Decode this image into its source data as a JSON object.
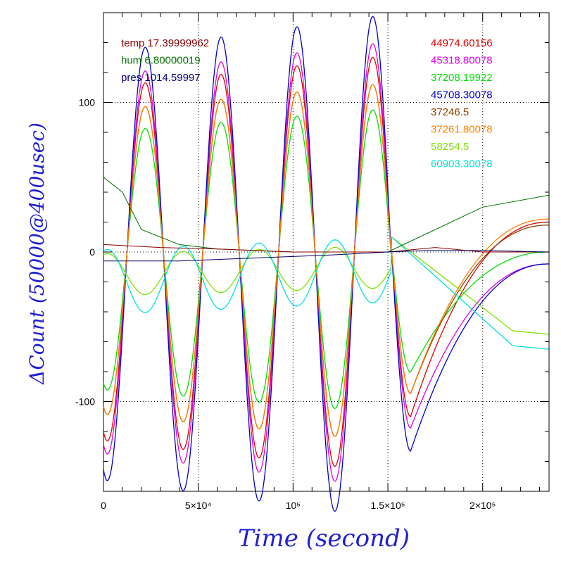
{
  "chart_data": {
    "type": "line",
    "xlabel": "Time (second)",
    "ylabel": "ΔCount (50000@400usec)",
    "xlim": [
      0,
      235000
    ],
    "ylim": [
      -160,
      160
    ],
    "grid": true,
    "grid_style": "dotted",
    "axis_label_color": "#2020d0",
    "x_ticks": [
      {
        "value": 0,
        "label": "0"
      },
      {
        "value": 50000,
        "label": "5×10⁴"
      },
      {
        "value": 100000,
        "label": "10⁵"
      },
      {
        "value": 150000,
        "label": "1.5×10⁵"
      },
      {
        "value": 200000,
        "label": "2×10⁵"
      }
    ],
    "y_ticks": [
      {
        "value": -100,
        "label": "-100"
      },
      {
        "value": 0,
        "label": "0"
      },
      {
        "value": 100,
        "label": "100"
      }
    ],
    "info_legend": [
      {
        "text": "temp 17.39999962",
        "color": "#8b0000"
      },
      {
        "text": "hum 6.80000019",
        "color": "#007000"
      },
      {
        "text": "pres 1014.59997",
        "color": "#00006b"
      }
    ],
    "series": [
      {
        "name": "44974.60156",
        "color": "#e00000",
        "kind": "osc",
        "amp": 1.0
      },
      {
        "name": "45318.80078",
        "color": "#e000e0",
        "kind": "osc",
        "amp": 1.07
      },
      {
        "name": "37208.19922",
        "color": "#00e000",
        "kind": "osc",
        "amp": 0.73
      },
      {
        "name": "45708.30078",
        "color": "#0000d0",
        "kind": "osc",
        "amp": 1.21
      },
      {
        "name": "37246.5",
        "color": "#8b4000",
        "kind": "osc",
        "amp": 0.86
      },
      {
        "name": "37261.80078",
        "color": "#ff8000",
        "kind": "osc",
        "amp": 0.86
      },
      {
        "name": "58254.5",
        "color": "#80e000",
        "kind": "small",
        "amp": 0.26
      },
      {
        "name": "60903.30078",
        "color": "#00e0e0",
        "kind": "small",
        "amp": 0.4
      }
    ],
    "env_series": [
      {
        "label": "hum",
        "color": "#007000",
        "x": [
          0,
          10000,
          20000,
          40000,
          60000,
          100000,
          150000,
          170000,
          200000,
          235000
        ],
        "y": [
          50,
          40,
          15,
          5,
          2,
          0,
          0,
          12,
          30,
          38
        ]
      },
      {
        "label": "temp",
        "color": "#8b0000",
        "x": [
          0,
          30000,
          60000,
          100000,
          150000,
          175000,
          200000,
          235000
        ],
        "y": [
          5,
          3,
          2,
          0,
          0,
          3,
          0,
          0
        ]
      },
      {
        "label": "pres",
        "color": "#00006b",
        "x": [
          0,
          40000,
          80000,
          120000,
          150000,
          170000,
          200000,
          235000
        ],
        "y": [
          -6,
          -6,
          -4,
          -2,
          0,
          1,
          1,
          0
        ]
      }
    ]
  }
}
